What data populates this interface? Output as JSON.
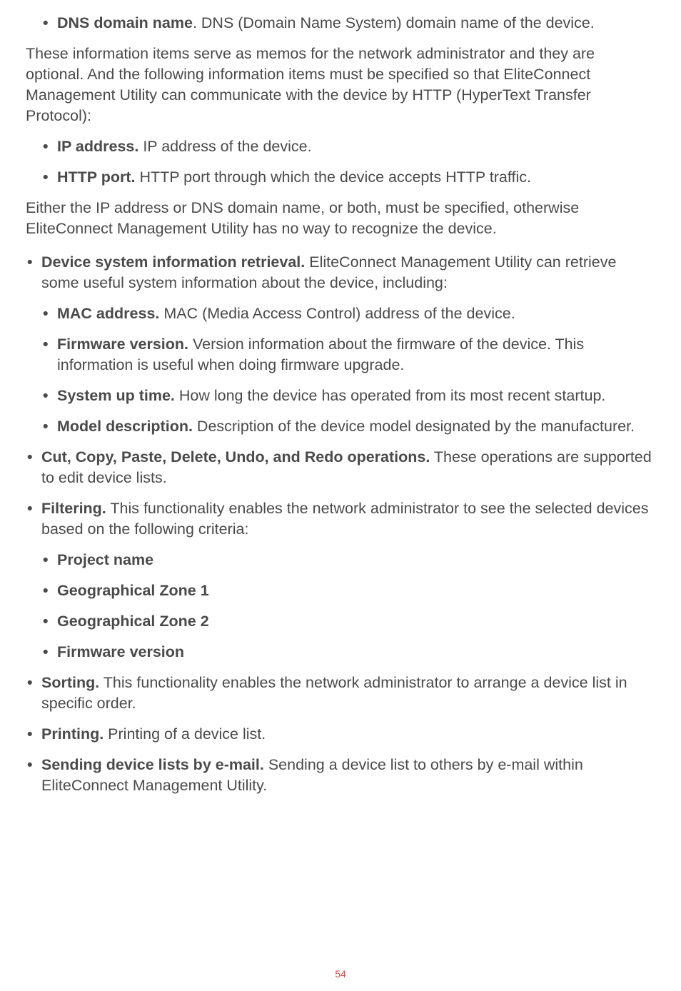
{
  "items": {
    "dns": {
      "bold": "DNS domain name",
      "text": ". DNS (Domain Name System) domain name of the device."
    },
    "para1": "These information items serve as memos for the network administrator and they are optional. And the following information items must be specified so that EliteConnect Management Utility can communicate with the device by HTTP (HyperText Transfer Protocol):",
    "ip": {
      "bold": "IP address.",
      "text": " IP address of the device."
    },
    "http": {
      "bold": "HTTP port.",
      "text": " HTTP port through which the device accepts HTTP traffic."
    },
    "para2": "Either the IP address or DNS domain name, or both, must be specified, otherwise EliteConnect Management Utility has no way to recognize the device.",
    "device_sys": {
      "bold": "Device system information retrieval.",
      "text": " EliteConnect Management Utility can retrieve some useful system information about the device, including:"
    },
    "mac": {
      "bold": "MAC address.",
      "text": " MAC (Media Access Control) address of the device."
    },
    "firmware": {
      "bold": "Firmware version.",
      "text": " Version information about the firmware of the device. This information is useful when doing firmware upgrade."
    },
    "sysup": {
      "bold": "System up time.",
      "text": " How long the device has operated from its most recent startup."
    },
    "model": {
      "bold": "Model description.",
      "text": " Description of the device model designated by the manufacturer."
    },
    "cut": {
      "bold": "Cut, Copy, Paste, Delete, Undo, and Redo operations.",
      "text": " These operations are supported to edit device lists."
    },
    "filtering": {
      "bold": "Filtering.",
      "text": " This functionality enables the network administrator to see the selected devices based on the following criteria:"
    },
    "proj": {
      "bold": "Project name"
    },
    "geo1": {
      "bold": "Geographical Zone 1"
    },
    "geo2": {
      "bold": "Geographical Zone 2"
    },
    "fwver": {
      "bold": "Firmware version"
    },
    "sorting": {
      "bold": "Sorting.",
      "text": " This functionality enables the network administrator to arrange a device list in specific order."
    },
    "printing": {
      "bold": "Printing.",
      "text": " Printing of a device list."
    },
    "sending": {
      "bold": "Sending device lists by e-mail.",
      "text": " Sending a device list to others by e-mail within EliteConnect Management Utility."
    }
  },
  "page_number": "54",
  "bullet": "•",
  "styling": {
    "background_color": "#ffffff",
    "text_color": "#4a4a4a",
    "page_number_color": "#d0504a",
    "body_fontsize": 21.5,
    "line_height": 1.35,
    "page_number_fontsize": 14
  }
}
